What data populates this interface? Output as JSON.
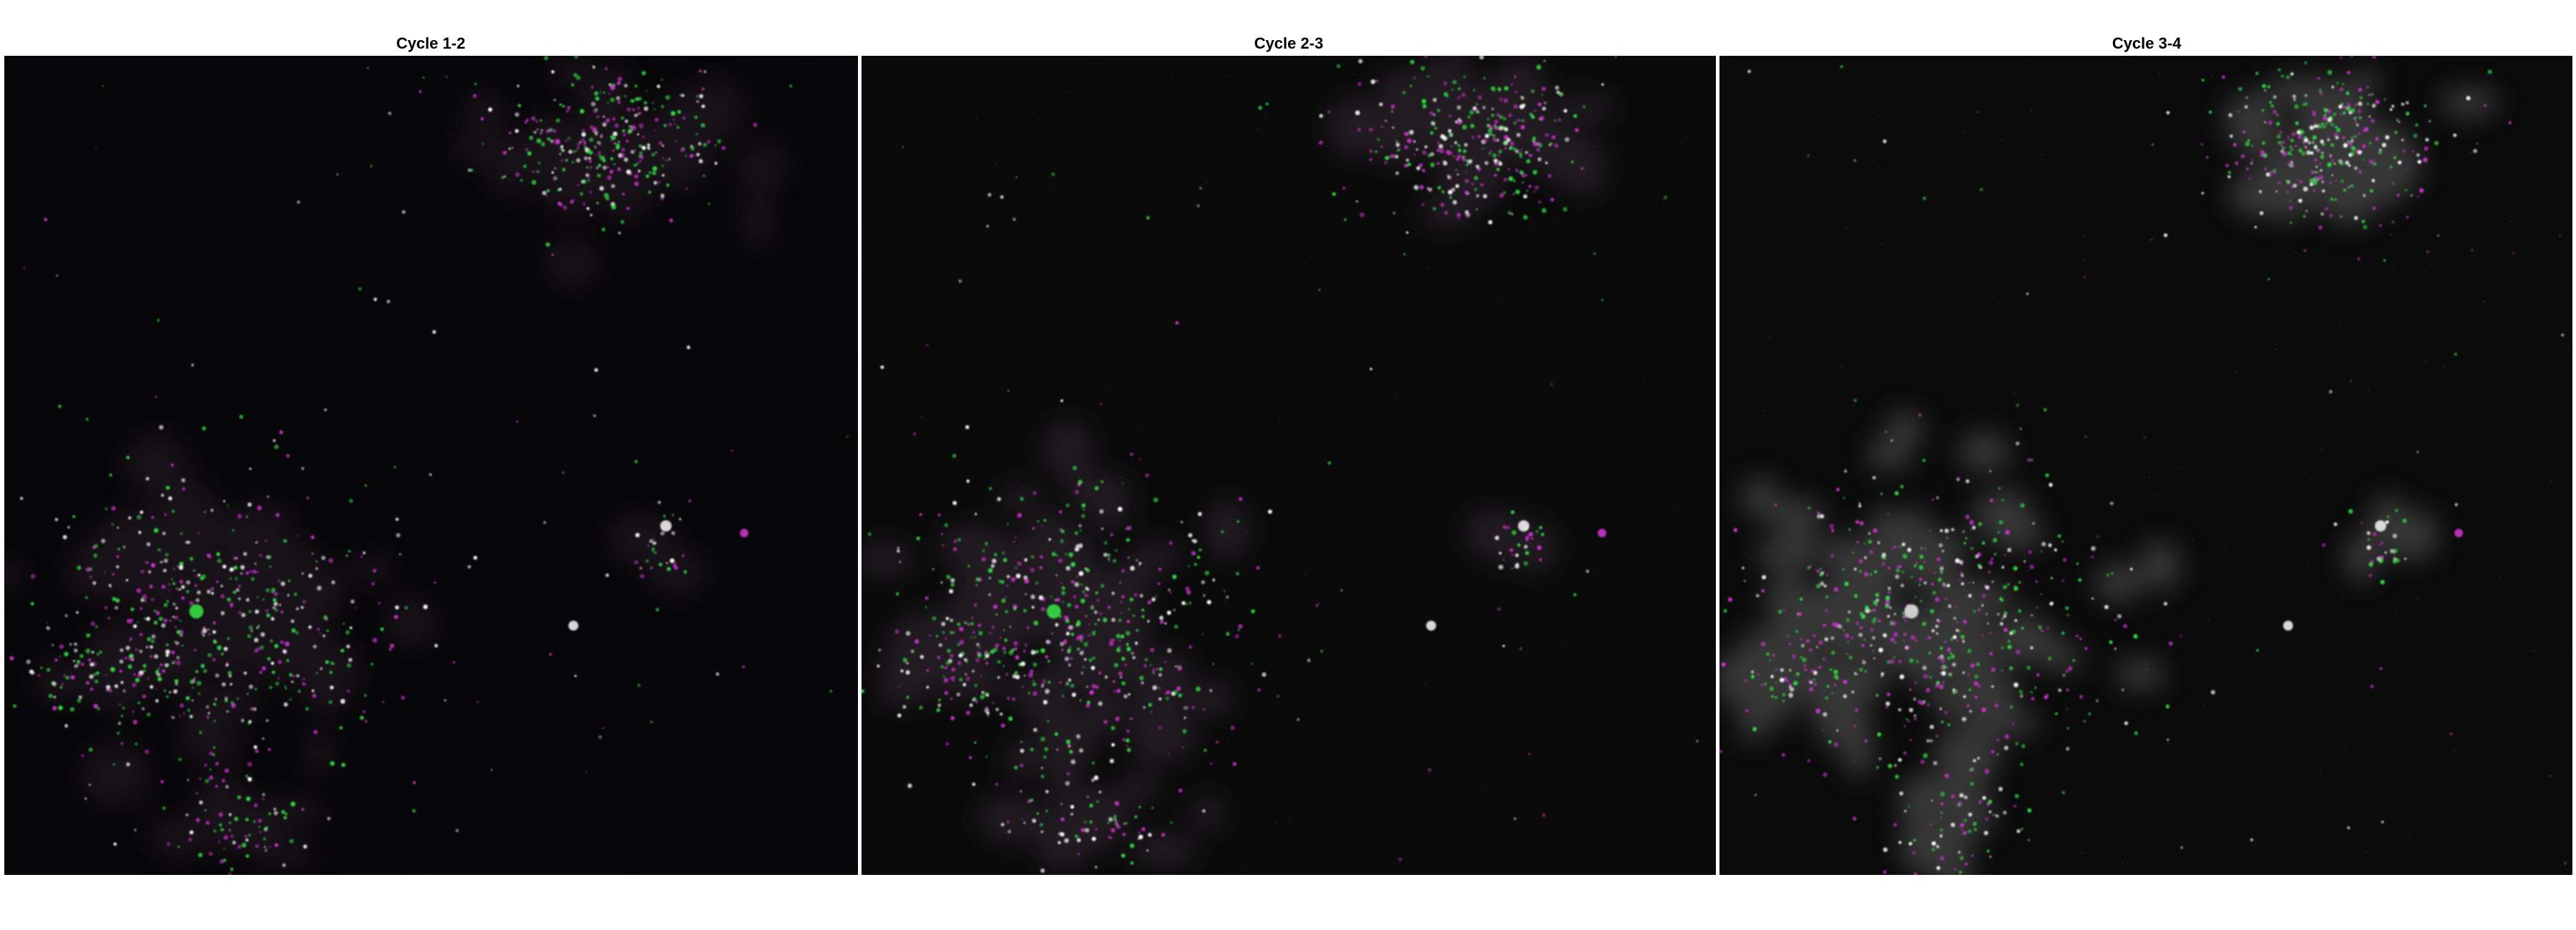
{
  "figure": {
    "background": "#ffffff",
    "panels": [
      {
        "title": "Cycle 1-2",
        "channel_a_color": "#33dd44",
        "channel_b_color": "#cc33cc",
        "overlap_color": "#ffffff",
        "background_color": "#070608",
        "cell_haze": "#3a2a3a"
      },
      {
        "title": "Cycle 2-3",
        "channel_a_color": "#33dd44",
        "channel_b_color": "#cc33cc",
        "overlap_color": "#ffffff",
        "background_color": "#0a0a0a",
        "cell_haze": "#3a2f3a"
      },
      {
        "title": "Cycle 3-4",
        "channel_a_color": "#33dd44",
        "channel_b_color": "#cc33cc",
        "overlap_color": "#ffffff",
        "background_color": "#0b0b0b",
        "cell_haze": "#505050"
      }
    ]
  }
}
